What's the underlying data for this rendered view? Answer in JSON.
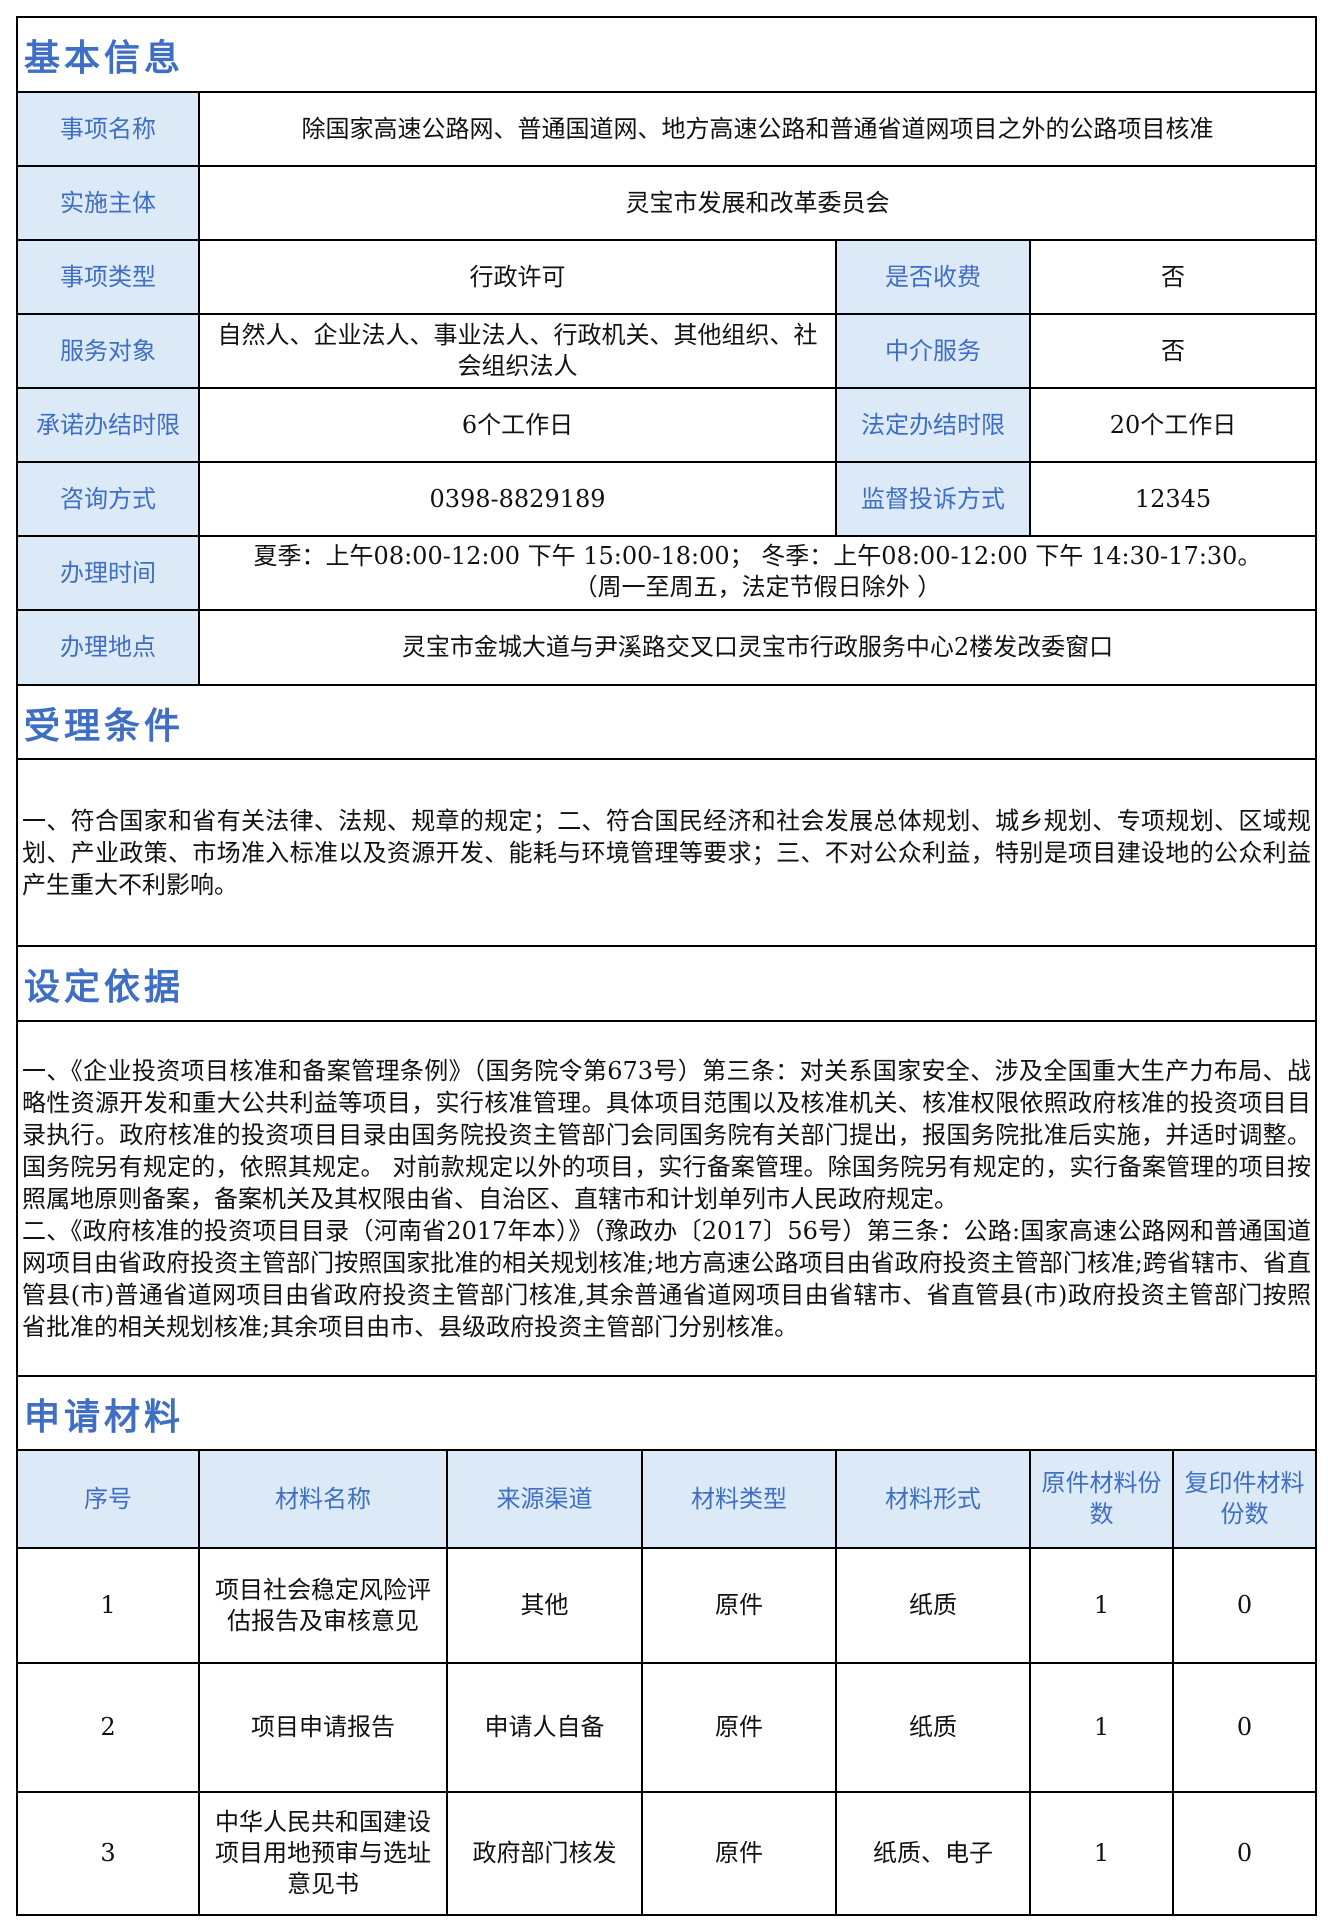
{
  "basic": {
    "title": "基本信息",
    "item_name_label": "事项名称",
    "item_name": "除国家高速公路网、普通国道网、地方高速公路和普通省道网项目之外的公路项目核准",
    "implementer_label": "实施主体",
    "implementer": "灵宝市发展和改革委员会",
    "type_label": "事项类型",
    "type": "行政许可",
    "fee_label": "是否收费",
    "fee": "否",
    "target_label": "服务对象",
    "target": "自然人、企业法人、事业法人、行政机关、其他组织、社会组织法人",
    "agency_label": "中介服务",
    "agency": "否",
    "promise_label": "承诺办结时限",
    "promise": "6个工作日",
    "legal_label": "法定办结时限",
    "legal": "20个工作日",
    "consult_label": "咨询方式",
    "consult": "0398-8829189",
    "complaint_label": "监督投诉方式",
    "complaint": "12345",
    "hours_label": "办理时间",
    "hours_line1": "夏季：上午08:00-12:00 下午 15:00-18:00； 冬季：上午08:00-12:00 下午 14:30-17:30。",
    "hours_line2": "（周一至周五，法定节假日除外 ）",
    "address_label": "办理地点",
    "address": "灵宝市金城大道与尹溪路交叉口灵宝市行政服务中心2楼发改委窗口"
  },
  "conditions": {
    "title": "受理条件",
    "text": "一、符合国家和省有关法律、法规、规章的规定；二、符合国民经济和社会发展总体规划、城乡规划、专项规划、区域规划、产业政策、市场准入标准以及资源开发、能耗与环境管理等要求；三、不对公众利益，特别是项目建设地的公众利益产生重大不利影响。"
  },
  "basis": {
    "title": "设定依据",
    "text1": "一、《企业投资项目核准和备案管理条例》（国务院令第673号）第三条：对关系国家安全、涉及全国重大生产力布局、战略性资源开发和重大公共利益等项目，实行核准管理。具体项目范围以及核准机关、核准权限依照政府核准的投资项目目录执行。政府核准的投资项目目录由国务院投资主管部门会同国务院有关部门提出，报国务院批准后实施，并适时调整。国务院另有规定的，依照其规定。 对前款规定以外的项目，实行备案管理。除国务院另有规定的，实行备案管理的项目按照属地原则备案，备案机关及其权限由省、自治区、直辖市和计划单列市人民政府规定。",
    "text2": "二、《政府核准的投资项目目录（河南省2017年本）》（豫政办〔2017〕56号）第三条：公路:国家高速公路网和普通国道网项目由省政府投资主管部门按照国家批准的相关规划核准;地方高速公路项目由省政府投资主管部门核准;跨省辖市、省直管县(市)普通省道网项目由省政府投资主管部门核准,其余普通省道网项目由省辖市、省直管县(市)政府投资主管部门按照省批准的相关规划核准;其余项目由市、县级政府投资主管部门分别核准。"
  },
  "materials": {
    "title": "申请材料",
    "headers": [
      "序号",
      "材料名称",
      "来源渠道",
      "材料类型",
      "材料形式",
      "原件材料份数",
      "复印件材料份数"
    ],
    "rows": [
      [
        "1",
        "项目社会稳定风险评估报告及审核意见",
        "其他",
        "原件",
        "纸质",
        "1",
        "0"
      ],
      [
        "2",
        "项目申请报告",
        "申请人自备",
        "原件",
        "纸质",
        "1",
        "0"
      ],
      [
        "3",
        "中华人民共和国建设项目用地预审与选址意见书",
        "政府部门核发",
        "原件",
        "纸质、电子",
        "1",
        "0"
      ]
    ]
  }
}
